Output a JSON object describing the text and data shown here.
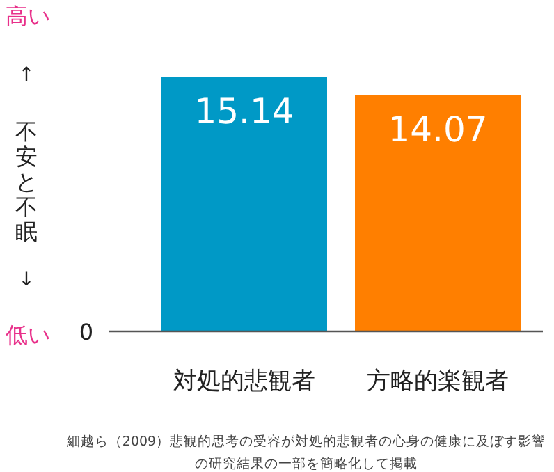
{
  "chart_data": {
    "type": "bar",
    "categories": [
      "対処的悲観者",
      "方略的楽観者"
    ],
    "values": [
      15.14,
      14.07
    ],
    "colors": [
      "#0099c6",
      "#ff7f00"
    ],
    "data_labels": true,
    "ylabel": "不安と不眠",
    "annotations": [
      "高い",
      "↑",
      "↓",
      "低い",
      "0",
      "細越ら（2009）悲観的思考の受容が対処的悲観者の心身の健康に及ぼす影響",
      "の研究結果の一部を簡略化して掲載"
    ]
  }
}
